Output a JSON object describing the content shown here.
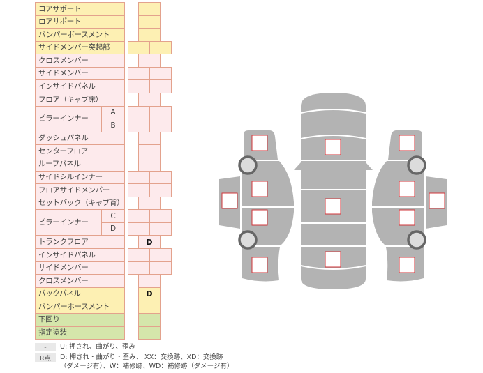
{
  "colors": {
    "yellow": "#fdf0b3",
    "pink": "#fdeaec",
    "green": "#d5e6ab",
    "border": "#e3a28d",
    "panel": "#b3b3b3",
    "mark": "#d0343a"
  },
  "rows": [
    {
      "label": "コアサポート",
      "color": "yellow",
      "cells": 1
    },
    {
      "label": "ロアサポート",
      "color": "yellow",
      "cells": 1
    },
    {
      "label": "バンパーボースメント",
      "color": "yellow",
      "cells": 1
    },
    {
      "label": "サイドメンバー突起部",
      "color": "yellow",
      "cells": 2
    },
    {
      "label": "クロスメンバー",
      "color": "pink",
      "cells": 1
    },
    {
      "label": "サイドメンバー",
      "color": "pink",
      "cells": 2
    },
    {
      "label": "インサイドパネル",
      "color": "pink",
      "cells": 2
    },
    {
      "label": "フロア（キャブ床）",
      "color": "pink",
      "cells": 1
    },
    {
      "label": "ピラーインナー",
      "color": "pink",
      "cells": 2,
      "subs": [
        "A",
        "B"
      ]
    },
    {
      "label": "ダッシュパネル",
      "color": "pink",
      "cells": 1
    },
    {
      "label": "センターフロア",
      "color": "pink",
      "cells": 1
    },
    {
      "label": "ルーフパネル",
      "color": "pink",
      "cells": 1
    },
    {
      "label": "サイドシルインナー",
      "color": "pink",
      "cells": 2
    },
    {
      "label": "フロアサイドメンバー",
      "color": "pink",
      "cells": 2
    },
    {
      "label": "セットバック（キャブ背）",
      "color": "pink",
      "cells": 1
    },
    {
      "label": "ピラーインナー",
      "color": "pink",
      "cells": 2,
      "subs": [
        "C",
        "D"
      ]
    },
    {
      "label": "トランクフロア",
      "color": "pink",
      "cells": 1,
      "mark": "D"
    },
    {
      "label": "インサイドパネル",
      "color": "pink",
      "cells": 2
    },
    {
      "label": "サイドメンバー",
      "color": "pink",
      "cells": 2
    },
    {
      "label": "クロスメンバー",
      "color": "pink",
      "cells": 1
    },
    {
      "label": "バックパネル",
      "color": "yellow",
      "cells": 1,
      "mark": "D"
    },
    {
      "label": "バンパーホースメント",
      "color": "yellow",
      "cells": 1
    },
    {
      "label": "下回り",
      "color": "green",
      "cells": 1
    },
    {
      "label": "指定塗装",
      "color": "green",
      "cells": 1
    }
  ],
  "legend": [
    {
      "key": "-",
      "text": "U: 押され、曲がり、歪み"
    },
    {
      "key": "R点",
      "text": "D: 押され・曲がり・歪み、 XX：交換跡、XD：交換跡",
      "text2": "（ダメージ有）、W：補修跡、WD：補修跡（ダメージ有）"
    }
  ]
}
